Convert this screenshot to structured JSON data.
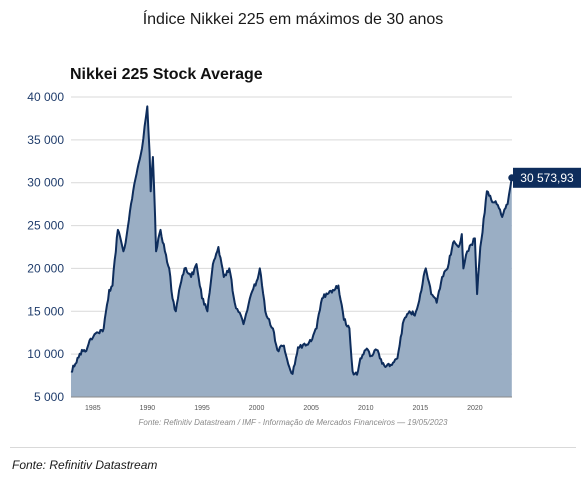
{
  "page": {
    "title": "Índice Nikkei 225 em máximos de 30 anos",
    "footer_source": "Fonte: Refinitiv Datastream"
  },
  "colors": {
    "line": "#0e2d5c",
    "fill": "#9aaec4",
    "grid": "#d9d9d9",
    "axis_text": "#1f3c6b",
    "xtick_text": "#555555",
    "callout_bg": "#0e2d5c",
    "callout_text": "#ffffff"
  },
  "chart_data": {
    "type": "area",
    "title": "Nikkei 225 Stock Average",
    "source": "Fonte: Refinitiv Datastream / IMF - Informação de Mercados Financeiros — 19/05/2023",
    "xlabel": "",
    "ylabel": "",
    "xlim": [
      1983.0,
      2023.4
    ],
    "ylim": [
      5000,
      40000
    ],
    "yticks": [
      5000,
      10000,
      15000,
      20000,
      25000,
      30000,
      35000,
      40000
    ],
    "ytick_labels": [
      "5 000",
      "10 000",
      "15 000",
      "20 000",
      "25 000",
      "30 000",
      "35 000",
      "40 000"
    ],
    "xticks": [
      1985,
      1990,
      1995,
      2000,
      2005,
      2010,
      2015,
      2020
    ],
    "xtick_labels": [
      "1985",
      "1990",
      "1995",
      "2000",
      "2005",
      "2010",
      "2015",
      "2020"
    ],
    "grid": true,
    "last_value_label": "30 573,93",
    "series": [
      {
        "x": [
          1983.0,
          1983.5,
          1984.0,
          1984.3,
          1984.8,
          1985.5,
          1986.0,
          1986.5,
          1986.8,
          1987.0,
          1987.3,
          1987.8,
          1988.0,
          1988.5,
          1989.0,
          1989.5,
          1989.99,
          1990.2,
          1990.3,
          1990.5,
          1990.7,
          1990.8,
          1991.2,
          1991.6,
          1992.0,
          1992.3,
          1992.6,
          1993.0,
          1993.4,
          1994.0,
          1994.5,
          1995.0,
          1995.5,
          1996.0,
          1996.5,
          1997.0,
          1997.5,
          1998.0,
          1998.8,
          1999.5,
          2000.0,
          2000.3,
          2000.8,
          2001.5,
          2001.9,
          2002.5,
          2003.0,
          2003.3,
          2003.8,
          2004.5,
          2005.0,
          2005.5,
          2006.0,
          2006.5,
          2007.0,
          2007.5,
          2008.0,
          2008.5,
          2008.8,
          2009.2,
          2009.5,
          2010.0,
          2010.5,
          2011.0,
          2011.3,
          2011.8,
          2012.0,
          2012.5,
          2012.9,
          2013.2,
          2013.5,
          2014.0,
          2014.5,
          2015.0,
          2015.5,
          2016.0,
          2016.5,
          2017.0,
          2017.5,
          2018.0,
          2018.5,
          2018.8,
          2018.95,
          2019.3,
          2020.0,
          2020.2,
          2020.5,
          2020.9,
          2021.1,
          2021.5,
          2022.0,
          2022.5,
          2023.0,
          2023.38
        ],
        "y": [
          8000,
          9000,
          10500,
          10300,
          11800,
          12500,
          13000,
          17500,
          18000,
          21000,
          24500,
          22000,
          23000,
          27500,
          31000,
          34000,
          38900,
          33500,
          29000,
          33000,
          26000,
          22000,
          24500,
          22000,
          20000,
          16500,
          15000,
          18000,
          20000,
          19000,
          20500,
          16500,
          15000,
          20500,
          22500,
          19000,
          20000,
          16000,
          13500,
          17000,
          18500,
          20000,
          15000,
          13000,
          10500,
          11000,
          8500,
          7700,
          10800,
          11000,
          11500,
          13000,
          16500,
          17000,
          17500,
          18000,
          14000,
          13000,
          8000,
          7600,
          9500,
          10500,
          9800,
          10500,
          9500,
          8500,
          8800,
          9000,
          9500,
          12000,
          14000,
          15000,
          14500,
          17000,
          20000,
          17000,
          16000,
          19000,
          20000,
          23000,
          22500,
          24000,
          20000,
          22000,
          23500,
          17000,
          22500,
          26500,
          29000,
          28000,
          27500,
          26000,
          27500,
          30574
        ]
      }
    ]
  }
}
